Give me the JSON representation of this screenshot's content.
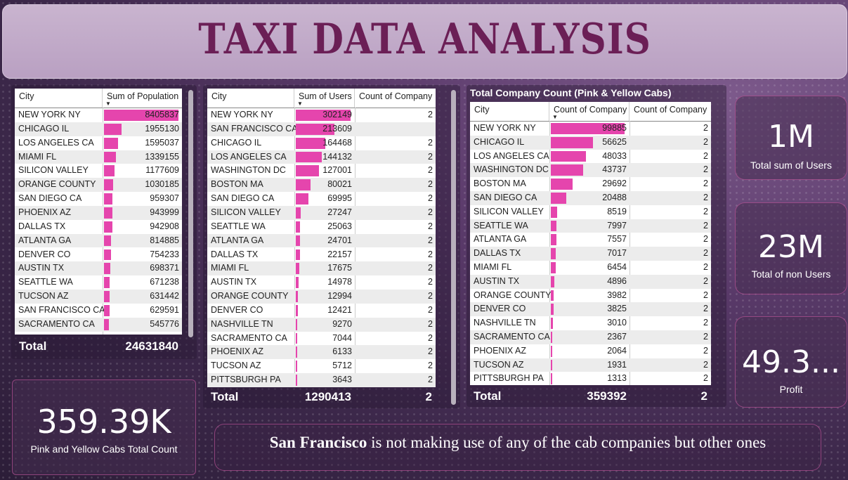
{
  "title": "TAXI DATA ANALYSIS",
  "population_table": {
    "headers": [
      "City",
      "Sum of Population"
    ],
    "rows": [
      [
        "NEW YORK NY",
        8405837
      ],
      [
        "CHICAGO IL",
        1955130
      ],
      [
        "LOS ANGELES CA",
        1595037
      ],
      [
        "MIAMI FL",
        1339155
      ],
      [
        "SILICON VALLEY",
        1177609
      ],
      [
        "ORANGE COUNTY",
        1030185
      ],
      [
        "SAN DIEGO CA",
        959307
      ],
      [
        "PHOENIX AZ",
        943999
      ],
      [
        "DALLAS TX",
        942908
      ],
      [
        "ATLANTA GA",
        814885
      ],
      [
        "DENVER CO",
        754233
      ],
      [
        "AUSTIN TX",
        698371
      ],
      [
        "SEATTLE WA",
        671238
      ],
      [
        "TUCSON AZ",
        631442
      ],
      [
        "SAN FRANCISCO CA",
        629591
      ],
      [
        "SACRAMENTO CA",
        545776
      ]
    ],
    "total_label": "Total",
    "total_value": "24631840"
  },
  "users_table": {
    "headers": [
      "City",
      "Sum of Users",
      "Count of Company"
    ],
    "rows": [
      [
        "NEW YORK NY",
        302149,
        "2"
      ],
      [
        "SAN FRANCISCO CA",
        213609,
        ""
      ],
      [
        "CHICAGO IL",
        164468,
        "2"
      ],
      [
        "LOS ANGELES CA",
        144132,
        "2"
      ],
      [
        "WASHINGTON DC",
        127001,
        "2"
      ],
      [
        "BOSTON MA",
        80021,
        "2"
      ],
      [
        "SAN DIEGO CA",
        69995,
        "2"
      ],
      [
        "SILICON VALLEY",
        27247,
        "2"
      ],
      [
        "SEATTLE WA",
        25063,
        "2"
      ],
      [
        "ATLANTA GA",
        24701,
        "2"
      ],
      [
        "DALLAS TX",
        22157,
        "2"
      ],
      [
        "MIAMI FL",
        17675,
        "2"
      ],
      [
        "AUSTIN TX",
        14978,
        "2"
      ],
      [
        "ORANGE COUNTY",
        12994,
        "2"
      ],
      [
        "DENVER CO",
        12421,
        "2"
      ],
      [
        "NASHVILLE TN",
        9270,
        "2"
      ],
      [
        "SACRAMENTO CA",
        7044,
        "2"
      ],
      [
        "PHOENIX AZ",
        6133,
        "2"
      ],
      [
        "TUCSON AZ",
        5712,
        "2"
      ],
      [
        "PITTSBURGH PA",
        3643,
        "2"
      ]
    ],
    "total_label": "Total",
    "total_value": "1290413",
    "total_count": "2"
  },
  "company_table": {
    "title": "Total Company Count (Pink & Yellow Cabs)",
    "headers": [
      "City",
      "Count of Company",
      "Count of Company"
    ],
    "rows": [
      [
        "NEW YORK NY",
        99885,
        "2"
      ],
      [
        "CHICAGO IL",
        56625,
        "2"
      ],
      [
        "LOS ANGELES CA",
        48033,
        "2"
      ],
      [
        "WASHINGTON DC",
        43737,
        "2"
      ],
      [
        "BOSTON MA",
        29692,
        "2"
      ],
      [
        "SAN DIEGO CA",
        20488,
        "2"
      ],
      [
        "SILICON VALLEY",
        8519,
        "2"
      ],
      [
        "SEATTLE WA",
        7997,
        "2"
      ],
      [
        "ATLANTA GA",
        7557,
        "2"
      ],
      [
        "DALLAS TX",
        7017,
        "2"
      ],
      [
        "MIAMI FL",
        6454,
        "2"
      ],
      [
        "AUSTIN TX",
        4896,
        "2"
      ],
      [
        "ORANGE COUNTY",
        3982,
        "2"
      ],
      [
        "DENVER CO",
        3825,
        "2"
      ],
      [
        "NASHVILLE TN",
        3010,
        "2"
      ],
      [
        "SACRAMENTO CA",
        2367,
        "2"
      ],
      [
        "PHOENIX AZ",
        2064,
        "2"
      ],
      [
        "TUCSON AZ",
        1931,
        "2"
      ],
      [
        "PITTSBURGH PA",
        1313,
        "2"
      ]
    ],
    "total_label": "Total",
    "total_value": "359392",
    "total_count": "2"
  },
  "kpis": {
    "users": {
      "value": "1M",
      "label": "Total sum of Users"
    },
    "non_users": {
      "value": "23M",
      "label": "Total of non Users"
    },
    "profit": {
      "value": "49.3...",
      "label": "Profit"
    },
    "cabs": {
      "value": "359.39K",
      "label": "Pink and Yellow Cabs Total Count"
    }
  },
  "note": {
    "bold": "San Francisco",
    "rest": " is not making use of any of the cab companies but other ones"
  },
  "colors": {
    "bar": "#e545ad",
    "title": "#6b1f56"
  }
}
